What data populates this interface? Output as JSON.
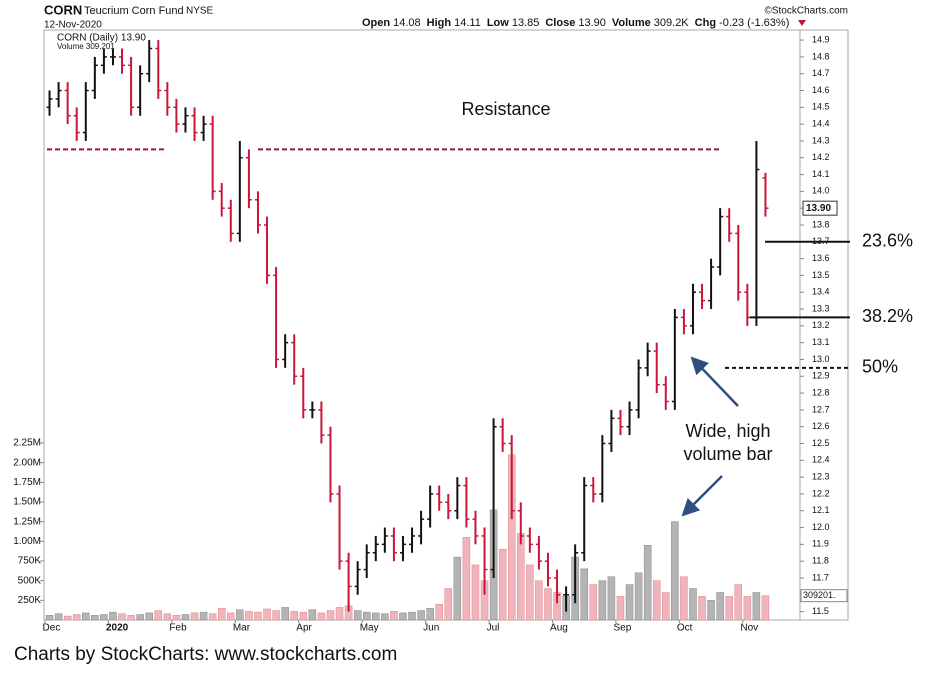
{
  "chart_data": {
    "type": "ohlc",
    "symbol": "CORN",
    "name": "Teucrium Corn Fund",
    "exchange": "NYSE",
    "date": "12-Nov-2020",
    "quote": [
      {
        "label": "Open",
        "value": "14.08"
      },
      {
        "label": "High",
        "value": "14.11"
      },
      {
        "label": "Low",
        "value": "13.85"
      },
      {
        "label": "Close",
        "value": "13.90"
      },
      {
        "label": "Volume",
        "value": "309.2K"
      },
      {
        "label": "Chg",
        "value": "-0.23 (-1.63%)"
      }
    ],
    "credit": "©StockCharts.com",
    "legend": {
      "price": "CORN (Daily) 13.90",
      "volume": "Volume 309,201"
    },
    "categories": [
      "Dec",
      null,
      null,
      null,
      null,
      null,
      null,
      "2020",
      null,
      null,
      null,
      null,
      null,
      null,
      "Feb",
      null,
      null,
      null,
      null,
      null,
      null,
      "Mar",
      null,
      null,
      null,
      null,
      null,
      null,
      "Apr",
      null,
      null,
      null,
      null,
      null,
      null,
      "May",
      null,
      null,
      null,
      null,
      null,
      null,
      "Jun",
      null,
      null,
      null,
      null,
      null,
      null,
      "Jul",
      null,
      null,
      null,
      null,
      null,
      null,
      "Aug",
      null,
      null,
      null,
      null,
      null,
      null,
      "Sep",
      null,
      null,
      null,
      null,
      null,
      null,
      "Oct",
      null,
      null,
      null,
      null,
      null,
      null,
      "Nov",
      null,
      null
    ],
    "open": [
      14.5,
      14.55,
      14.6,
      14.45,
      14.35,
      14.6,
      14.75,
      14.8,
      14.8,
      14.75,
      14.5,
      14.7,
      14.85,
      14.6,
      14.5,
      14.4,
      14.45,
      14.35,
      14.4,
      14.0,
      13.9,
      13.75,
      14.2,
      13.95,
      13.8,
      13.5,
      13.0,
      13.1,
      12.9,
      12.7,
      12.7,
      12.55,
      12.2,
      11.8,
      11.65,
      11.75,
      11.85,
      11.9,
      11.95,
      11.85,
      11.9,
      11.95,
      12.05,
      12.2,
      12.15,
      12.1,
      12.25,
      12.05,
      11.95,
      11.75,
      12.6,
      12.5,
      12.1,
      11.95,
      11.9,
      11.8,
      11.7,
      11.6,
      11.6,
      11.85,
      12.25,
      12.2,
      12.5,
      12.65,
      12.6,
      12.7,
      12.95,
      13.05,
      12.85,
      12.75,
      13.25,
      13.2,
      13.4,
      13.35,
      13.55,
      13.85,
      13.75,
      13.4,
      13.25,
      14.08
    ],
    "high": [
      14.6,
      14.65,
      14.65,
      14.5,
      14.65,
      14.8,
      14.85,
      14.85,
      14.85,
      14.8,
      14.75,
      14.9,
      14.9,
      14.65,
      14.55,
      14.5,
      14.5,
      14.45,
      14.45,
      14.05,
      13.95,
      14.3,
      14.25,
      14.0,
      13.85,
      13.55,
      13.15,
      13.15,
      12.95,
      12.75,
      12.75,
      12.6,
      12.25,
      11.85,
      11.8,
      11.9,
      11.95,
      12.0,
      12.0,
      11.95,
      12.0,
      12.1,
      12.25,
      12.25,
      12.2,
      12.3,
      12.3,
      12.1,
      12.0,
      12.65,
      12.65,
      12.55,
      12.15,
      12.0,
      11.95,
      11.85,
      11.75,
      11.65,
      11.9,
      12.3,
      12.3,
      12.55,
      12.7,
      12.7,
      12.75,
      13.0,
      13.1,
      13.1,
      12.9,
      13.3,
      13.3,
      13.45,
      13.45,
      13.6,
      13.9,
      13.9,
      13.8,
      13.45,
      14.3,
      14.11
    ],
    "low": [
      14.45,
      14.5,
      14.4,
      14.3,
      14.3,
      14.55,
      14.7,
      14.75,
      14.7,
      14.45,
      14.45,
      14.65,
      14.55,
      14.45,
      14.35,
      14.35,
      14.3,
      14.3,
      13.95,
      13.85,
      13.7,
      13.7,
      13.9,
      13.75,
      13.45,
      12.95,
      12.95,
      12.85,
      12.65,
      12.65,
      12.5,
      12.15,
      11.75,
      11.5,
      11.6,
      11.7,
      11.8,
      11.85,
      11.8,
      11.8,
      11.85,
      11.9,
      12.0,
      12.1,
      12.05,
      12.05,
      12.0,
      11.9,
      11.6,
      11.7,
      12.45,
      12.05,
      11.9,
      11.85,
      11.75,
      11.65,
      11.55,
      11.5,
      11.55,
      11.8,
      12.15,
      12.15,
      12.45,
      12.55,
      12.55,
      12.65,
      12.9,
      12.8,
      12.7,
      12.7,
      13.15,
      13.15,
      13.3,
      13.3,
      13.5,
      13.7,
      13.35,
      13.2,
      13.2,
      13.85
    ],
    "close": [
      14.55,
      14.6,
      14.45,
      14.35,
      14.6,
      14.75,
      14.8,
      14.8,
      14.75,
      14.5,
      14.7,
      14.85,
      14.6,
      14.5,
      14.4,
      14.45,
      14.35,
      14.4,
      14.0,
      13.9,
      13.75,
      14.2,
      13.95,
      13.8,
      13.5,
      13.0,
      13.1,
      12.9,
      12.7,
      12.7,
      12.55,
      12.2,
      11.8,
      11.65,
      11.75,
      11.85,
      11.9,
      11.95,
      11.85,
      11.9,
      11.95,
      12.05,
      12.2,
      12.15,
      12.1,
      12.25,
      12.05,
      11.95,
      11.75,
      12.6,
      12.5,
      12.1,
      11.95,
      11.9,
      11.8,
      11.7,
      11.6,
      11.6,
      11.85,
      12.25,
      12.2,
      12.5,
      12.65,
      12.6,
      12.7,
      12.95,
      13.05,
      12.85,
      12.75,
      13.25,
      13.2,
      13.4,
      13.35,
      13.55,
      13.85,
      13.75,
      13.4,
      13.25,
      14.13,
      13.9
    ],
    "volume": [
      60000,
      80000,
      50000,
      70000,
      90000,
      60000,
      70000,
      100000,
      80000,
      60000,
      70000,
      90000,
      120000,
      80000,
      60000,
      70000,
      90000,
      100000,
      80000,
      150000,
      90000,
      130000,
      110000,
      100000,
      140000,
      120000,
      160000,
      110000,
      100000,
      130000,
      90000,
      120000,
      160000,
      180000,
      120000,
      100000,
      90000,
      80000,
      110000,
      90000,
      100000,
      120000,
      150000,
      200000,
      400000,
      800000,
      1050000,
      700000,
      500000,
      1400000,
      900000,
      2100000,
      1100000,
      700000,
      500000,
      400000,
      350000,
      300000,
      800000,
      650000,
      450000,
      500000,
      550000,
      300000,
      450000,
      600000,
      950000,
      500000,
      350000,
      1250000,
      550000,
      400000,
      300000,
      250000,
      350000,
      300000,
      450000,
      300000,
      350000,
      309201
    ],
    "ylim": [
      11.45,
      14.96
    ],
    "yticks": [
      11.5,
      11.6,
      11.7,
      11.8,
      11.9,
      {
        "value": 12.0,
        "label": "12.0"
      },
      12.1,
      12.2,
      12.3,
      12.4,
      12.5,
      12.6,
      12.7,
      12.8,
      12.9,
      {
        "value": 13.0,
        "label": "13.0"
      },
      13.1,
      13.2,
      13.3,
      13.4,
      13.5,
      13.6,
      13.7,
      13.8,
      13.9,
      {
        "value": 14.0,
        "label": "14.0"
      },
      14.1,
      14.2,
      14.3,
      14.4,
      14.5,
      14.6,
      14.7,
      14.8,
      14.9
    ],
    "y2lim": [
      0,
      7500000
    ],
    "y2ticks": [
      {
        "value": 250000,
        "label": "250K"
      },
      {
        "value": 500000,
        "label": "500K"
      },
      {
        "value": 750000,
        "label": "750K"
      },
      {
        "value": 1000000,
        "label": "1.00M"
      },
      {
        "value": 1250000,
        "label": "1.25M"
      },
      {
        "value": 1500000,
        "label": "1.50M"
      },
      {
        "value": 1750000,
        "label": "1.75M"
      },
      {
        "value": 2000000,
        "label": "2.00M"
      },
      {
        "value": 2250000,
        "label": "2.25M"
      }
    ],
    "colors": {
      "up": "#111111",
      "down": "#c8163a",
      "volume_up": "#b4b4b4",
      "volume_down": "#f0b4bd",
      "annotation": "#9b1c2c",
      "arrow": "#2f4f7f"
    },
    "last_price_tag": "13.90",
    "last_volume_tag": "309201.",
    "resistance": {
      "label": "Resistance",
      "value": 14.25
    },
    "fib_levels": [
      {
        "label": "23.6%",
        "value": 13.7
      },
      {
        "label": "38.2%",
        "value": 13.25
      },
      {
        "label": "50%",
        "value": 12.95
      }
    ],
    "note": [
      "Wide, high",
      "volume bar"
    ],
    "footer": "Charts by StockCharts:  www.stockcharts.com"
  }
}
